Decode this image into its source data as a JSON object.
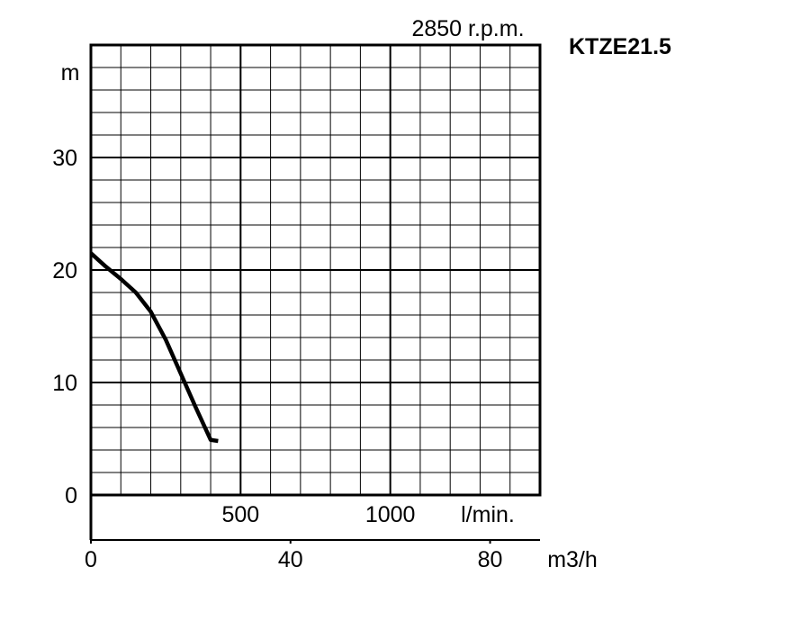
{
  "chart_data": {
    "type": "line",
    "title": "KTZE21.5",
    "speed_label": "2850 r.p.m.",
    "ylabel": "m",
    "ylim": [
      0,
      40
    ],
    "yticks": [
      0,
      10,
      20,
      30
    ],
    "y_tick_labels": [
      "0",
      "10",
      "20",
      "30"
    ],
    "x_flow_m3h": {
      "unit_label": "m3/h",
      "range": [
        0,
        90
      ],
      "ticks": [
        0,
        40,
        80
      ],
      "tick_labels": [
        "0",
        "40",
        "80"
      ]
    },
    "x_flow_lmin": {
      "unit_label": "l/min.",
      "ticks": [
        500,
        1000
      ],
      "tick_labels": [
        "500",
        "1000"
      ]
    },
    "grid": true,
    "series": [
      {
        "x": [
          0,
          3,
          6,
          9,
          12,
          15,
          18,
          21,
          24,
          25.5
        ],
        "y": [
          21.5,
          20.3,
          19.2,
          18.0,
          16.3,
          13.8,
          10.8,
          7.8,
          4.9,
          4.8
        ]
      }
    ]
  },
  "colors": {
    "line": "#000000",
    "grid": "#000000",
    "background": "#ffffff"
  }
}
